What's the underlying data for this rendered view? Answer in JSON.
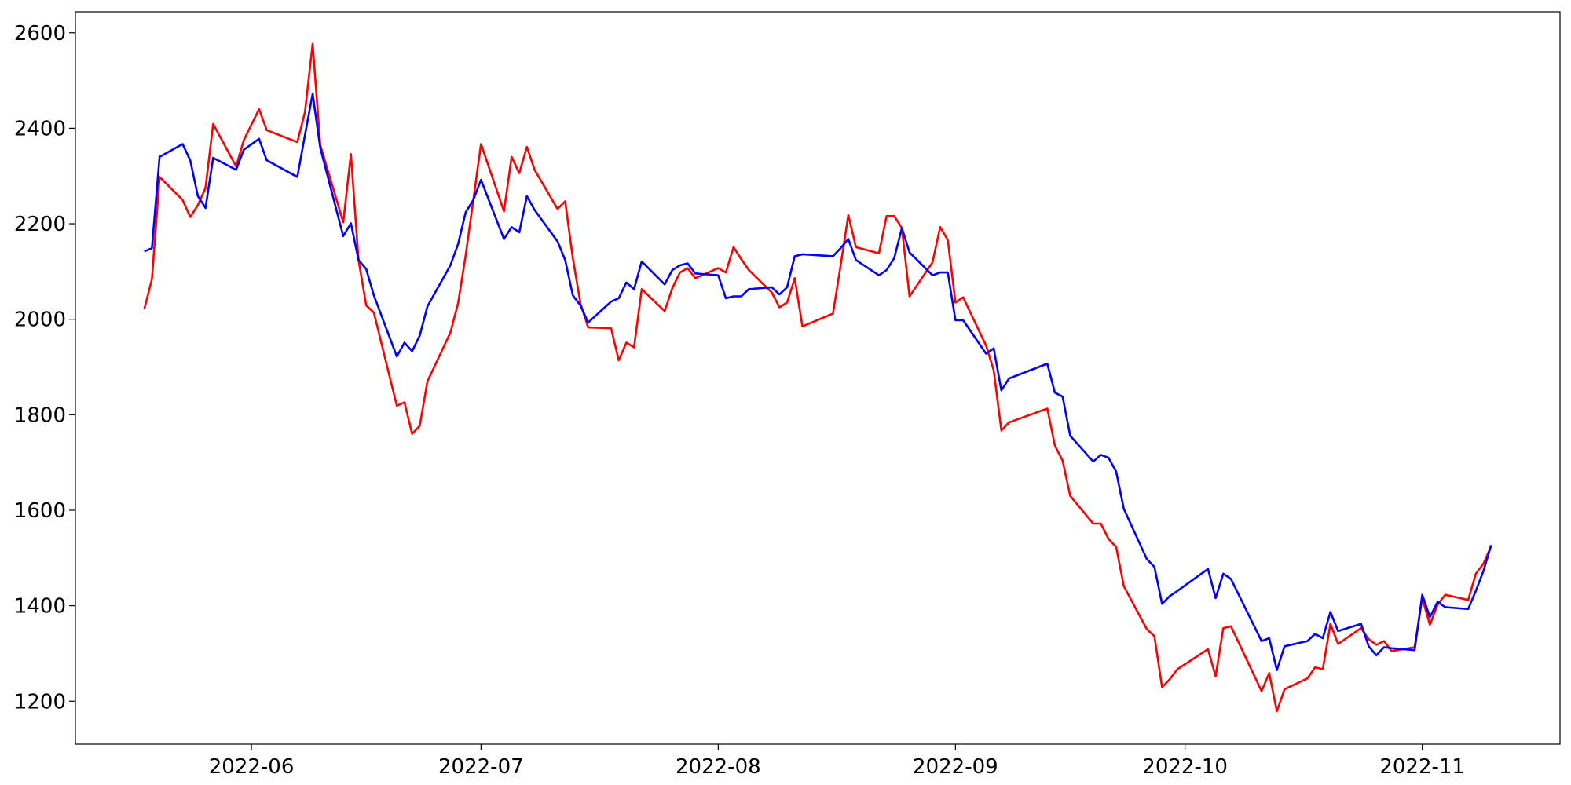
{
  "chart_data": {
    "type": "line",
    "x": [
      "2022-05-18",
      "2022-05-19",
      "2022-05-20",
      "2022-05-23",
      "2022-05-24",
      "2022-05-25",
      "2022-05-26",
      "2022-05-27",
      "2022-05-30",
      "2022-05-31",
      "2022-06-02",
      "2022-06-03",
      "2022-06-07",
      "2022-06-08",
      "2022-06-09",
      "2022-06-10",
      "2022-06-13",
      "2022-06-14",
      "2022-06-15",
      "2022-06-16",
      "2022-06-17",
      "2022-06-20",
      "2022-06-21",
      "2022-06-22",
      "2022-06-23",
      "2022-06-24",
      "2022-06-27",
      "2022-06-28",
      "2022-06-29",
      "2022-06-30",
      "2022-07-01",
      "2022-07-04",
      "2022-07-05",
      "2022-07-06",
      "2022-07-07",
      "2022-07-08",
      "2022-07-11",
      "2022-07-12",
      "2022-07-13",
      "2022-07-14",
      "2022-07-15",
      "2022-07-18",
      "2022-07-19",
      "2022-07-20",
      "2022-07-21",
      "2022-07-22",
      "2022-07-25",
      "2022-07-26",
      "2022-07-27",
      "2022-07-28",
      "2022-07-29",
      "2022-08-01",
      "2022-08-02",
      "2022-08-03",
      "2022-08-04",
      "2022-08-05",
      "2022-08-08",
      "2022-08-09",
      "2022-08-10",
      "2022-08-11",
      "2022-08-12",
      "2022-08-16",
      "2022-08-17",
      "2022-08-18",
      "2022-08-19",
      "2022-08-22",
      "2022-08-23",
      "2022-08-24",
      "2022-08-25",
      "2022-08-26",
      "2022-08-29",
      "2022-08-30",
      "2022-08-31",
      "2022-09-01",
      "2022-09-02",
      "2022-09-05",
      "2022-09-06",
      "2022-09-07",
      "2022-09-08",
      "2022-09-13",
      "2022-09-14",
      "2022-09-15",
      "2022-09-16",
      "2022-09-19",
      "2022-09-20",
      "2022-09-21",
      "2022-09-22",
      "2022-09-23",
      "2022-09-26",
      "2022-09-27",
      "2022-09-28",
      "2022-09-29",
      "2022-09-30",
      "2022-10-04",
      "2022-10-05",
      "2022-10-06",
      "2022-10-07",
      "2022-10-11",
      "2022-10-12",
      "2022-10-13",
      "2022-10-14",
      "2022-10-17",
      "2022-10-18",
      "2022-10-19",
      "2022-10-20",
      "2022-10-21",
      "2022-10-24",
      "2022-10-25",
      "2022-10-26",
      "2022-10-27",
      "2022-10-28",
      "2022-10-31",
      "2022-11-01",
      "2022-11-02",
      "2022-11-03",
      "2022-11-04",
      "2022-11-07",
      "2022-11-08",
      "2022-11-09",
      "2022-11-10"
    ],
    "series": [
      {
        "color": "#ff0000",
        "values": [
          2021,
          2084,
          2298,
          2250,
          2214,
          2239,
          2275,
          2409,
          2320,
          2375,
          2440,
          2396,
          2371,
          2434,
          2577,
          2365,
          2203,
          2346,
          2124,
          2029,
          2014,
          1819,
          1826,
          1760,
          1777,
          1870,
          1972,
          2033,
          2134,
          2250,
          2367,
          2226,
          2340,
          2306,
          2361,
          2313,
          2231,
          2247,
          2128,
          2033,
          1983,
          1981,
          1914,
          1951,
          1941,
          2063,
          2017,
          2065,
          2098,
          2107,
          2086,
          2107,
          2098,
          2151,
          2126,
          2103,
          2056,
          2025,
          2035,
          2086,
          1985,
          2012,
          2113,
          2218,
          2151,
          2138,
          2216,
          2216,
          2191,
          2048,
          2119,
          2193,
          2166,
          2035,
          2046,
          1945,
          1893,
          1767,
          1784,
          1813,
          1735,
          1704,
          1630,
          1572,
          1572,
          1540,
          1523,
          1441,
          1351,
          1336,
          1229,
          1246,
          1267,
          1309,
          1252,
          1353,
          1357,
          1221,
          1259,
          1179,
          1225,
          1248,
          1271,
          1267,
          1362,
          1320,
          1353,
          1330,
          1318,
          1326,
          1305,
          1313,
          1416,
          1360,
          1402,
          1423,
          1412,
          1467,
          1488,
          1525
        ]
      },
      {
        "color": "#0000ff",
        "values": [
          2142,
          2149,
          2340,
          2367,
          2333,
          2258,
          2233,
          2338,
          2313,
          2355,
          2378,
          2333,
          2298,
          2386,
          2472,
          2359,
          2174,
          2201,
          2124,
          2105,
          2050,
          1922,
          1951,
          1933,
          1966,
          2027,
          2113,
          2157,
          2224,
          2250,
          2292,
          2168,
          2193,
          2182,
          2258,
          2229,
          2163,
          2124,
          2050,
          2029,
          1993,
          2037,
          2044,
          2077,
          2063,
          2121,
          2073,
          2103,
          2113,
          2117,
          2096,
          2092,
          2044,
          2048,
          2048,
          2063,
          2067,
          2052,
          2067,
          2132,
          2136,
          2132,
          2149,
          2168,
          2124,
          2092,
          2103,
          2128,
          2191,
          2140,
          2092,
          2098,
          2098,
          1998,
          1998,
          1928,
          1939,
          1851,
          1876,
          1907,
          1846,
          1838,
          1756,
          1702,
          1716,
          1710,
          1681,
          1603,
          1498,
          1481,
          1404,
          1420,
          1431,
          1477,
          1416,
          1467,
          1456,
          1326,
          1332,
          1265,
          1315,
          1326,
          1341,
          1332,
          1387,
          1347,
          1362,
          1315,
          1296,
          1313,
          1311,
          1307,
          1423,
          1376,
          1408,
          1397,
          1393,
          1431,
          1473,
          1527
        ]
      }
    ],
    "xlim": [
      "2022-05-09",
      "2022-11-19"
    ],
    "xticks": [
      {
        "value": "2022-06-01",
        "label": "2022-06"
      },
      {
        "value": "2022-07-01",
        "label": "2022-07"
      },
      {
        "value": "2022-08-01",
        "label": "2022-08"
      },
      {
        "value": "2022-09-01",
        "label": "2022-09"
      },
      {
        "value": "2022-10-01",
        "label": "2022-10"
      },
      {
        "value": "2022-11-01",
        "label": "2022-11"
      }
    ],
    "ylim": [
      1110,
      2644
    ],
    "yticks": [
      1200,
      1400,
      1600,
      1800,
      2000,
      2200,
      2400,
      2600
    ],
    "grid": false
  }
}
